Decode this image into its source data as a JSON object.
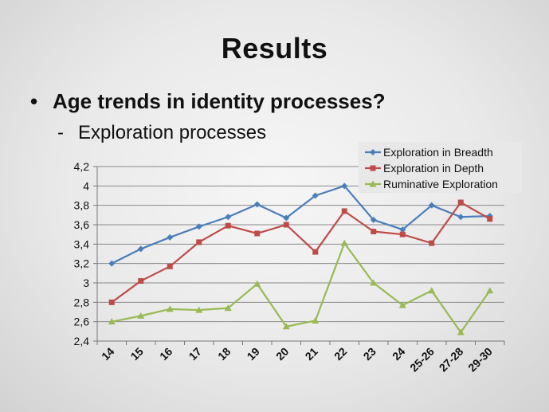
{
  "slide": {
    "title": "Results",
    "bullet_symbol": "•",
    "bullet_text": "Age trends in identity processes?",
    "subbullet_symbol": "-",
    "subbullet_text": "Exploration processes"
  },
  "chart_data": {
    "type": "line",
    "title": "",
    "xlabel": "",
    "ylabel": "",
    "categories": [
      "14",
      "15",
      "16",
      "17",
      "18",
      "19",
      "20",
      "21",
      "22",
      "23",
      "24",
      "25-26",
      "27-28",
      "29-30"
    ],
    "ylim": [
      2.4,
      4.2
    ],
    "yticks": [
      "2,4",
      "2,6",
      "2,8",
      "3",
      "3,2",
      "3,4",
      "3,6",
      "3,8",
      "4",
      "4,2"
    ],
    "grid": "horizontal",
    "legend_position": "top-right",
    "series": [
      {
        "name": "Exploration in Breadth",
        "color": "#4a7ebb",
        "marker": "diamond",
        "values": [
          3.2,
          3.35,
          3.47,
          3.58,
          3.68,
          3.81,
          3.67,
          3.9,
          4.0,
          3.65,
          3.55,
          3.8,
          3.68,
          3.69
        ]
      },
      {
        "name": "Exploration in Depth",
        "color": "#be4b48",
        "marker": "square",
        "values": [
          2.8,
          3.02,
          3.17,
          3.42,
          3.59,
          3.51,
          3.6,
          3.32,
          3.74,
          3.53,
          3.5,
          3.41,
          3.83,
          3.66
        ]
      },
      {
        "name": "Ruminative Exploration",
        "color": "#98b954",
        "marker": "triangle",
        "values": [
          2.6,
          2.66,
          2.73,
          2.72,
          2.74,
          2.99,
          2.55,
          2.61,
          3.41,
          3.0,
          2.77,
          2.92,
          2.49,
          2.92
        ]
      }
    ]
  }
}
